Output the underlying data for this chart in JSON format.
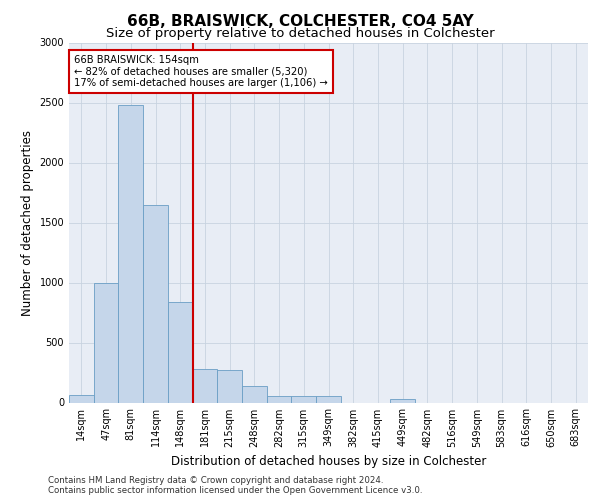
{
  "title1": "66B, BRAISWICK, COLCHESTER, CO4 5AY",
  "title2": "Size of property relative to detached houses in Colchester",
  "xlabel": "Distribution of detached houses by size in Colchester",
  "ylabel": "Number of detached properties",
  "categories": [
    "14sqm",
    "47sqm",
    "81sqm",
    "114sqm",
    "148sqm",
    "181sqm",
    "215sqm",
    "248sqm",
    "282sqm",
    "315sqm",
    "349sqm",
    "382sqm",
    "415sqm",
    "449sqm",
    "482sqm",
    "516sqm",
    "549sqm",
    "583sqm",
    "616sqm",
    "650sqm",
    "683sqm"
  ],
  "values": [
    60,
    1000,
    2480,
    1650,
    840,
    280,
    275,
    135,
    55,
    55,
    55,
    0,
    0,
    30,
    0,
    0,
    0,
    0,
    0,
    0,
    0
  ],
  "bar_color": "#c5d6ea",
  "bar_edge_color": "#6a9ec5",
  "vline_color": "#cc0000",
  "annotation_line1": "66B BRAISWICK: 154sqm",
  "annotation_line2": "← 82% of detached houses are smaller (5,320)",
  "annotation_line3": "17% of semi-detached houses are larger (1,106) →",
  "annotation_box_color": "#ffffff",
  "annotation_box_edge_color": "#cc0000",
  "ylim": [
    0,
    3000
  ],
  "yticks": [
    0,
    500,
    1000,
    1500,
    2000,
    2500,
    3000
  ],
  "grid_color": "#c8d3e0",
  "background_color": "#e8edf5",
  "footer": "Contains HM Land Registry data © Crown copyright and database right 2024.\nContains public sector information licensed under the Open Government Licence v3.0.",
  "title1_fontsize": 11,
  "title2_fontsize": 9.5,
  "tick_fontsize": 7,
  "ylabel_fontsize": 8.5,
  "xlabel_fontsize": 8.5,
  "footer_fontsize": 6.2
}
